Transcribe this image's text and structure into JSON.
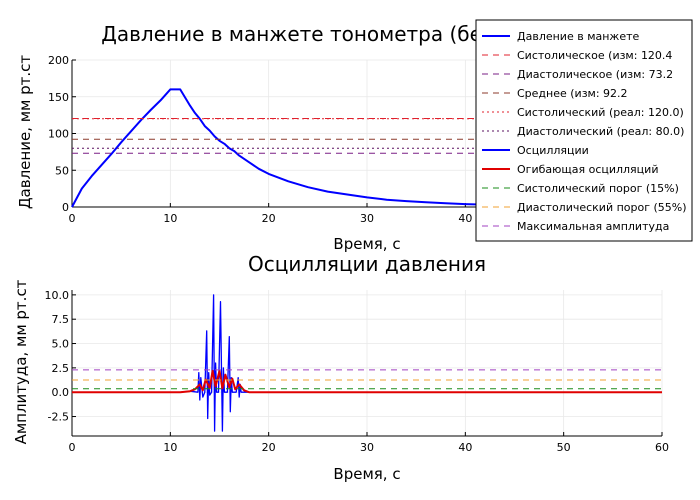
{
  "chart_data": [
    {
      "type": "line",
      "title": "Давление в манжете тонометра (без артефактов)",
      "xlabel": "Время, с",
      "ylabel": "Давление, мм рт.ст",
      "xlim": [
        0,
        60
      ],
      "ylim": [
        0,
        200
      ],
      "xticks": [
        0,
        10,
        20,
        30,
        40
      ],
      "yticks": [
        0,
        50,
        100,
        150,
        200
      ],
      "grid": true,
      "legend": "top-right",
      "series": [
        {
          "name": "Давление в манжете",
          "color": "#0000ff",
          "style": "solid",
          "x": [
            0,
            1,
            2,
            3,
            4,
            5,
            6,
            7,
            8,
            9,
            10,
            11,
            12,
            12.5,
            13,
            13.5,
            14,
            14.5,
            15,
            15.5,
            16,
            16.5,
            17,
            18,
            19,
            20,
            22,
            24,
            26,
            28,
            30,
            32,
            34,
            36,
            38,
            40,
            42,
            44,
            46,
            48,
            50,
            55,
            60
          ],
          "y": [
            0,
            25,
            42,
            57,
            72,
            88,
            103,
            118,
            132,
            145,
            160,
            160,
            138,
            128,
            120,
            110,
            104,
            96,
            90,
            86,
            80,
            76,
            70,
            61,
            52,
            45,
            35,
            27,
            21,
            17,
            13,
            10,
            8,
            6.5,
            5,
            4,
            3.2,
            2.6,
            2.1,
            1.7,
            1.4,
            0.8,
            0.5
          ]
        },
        {
          "name": "Систолическое (изм: 120.4",
          "color": "#e0202c",
          "style": "dash",
          "hline": 120.4
        },
        {
          "name": "Диастолическое (изм: 73.2",
          "color": "#7a1f85",
          "style": "dash",
          "hline": 73.2
        },
        {
          "name": "Среднее (изм: 92.2",
          "color": "#8b3a2b",
          "style": "dash",
          "hline": 92.2
        },
        {
          "name": "Систолический (реал: 120.0)",
          "color": "#e0202c",
          "style": "dot",
          "hline": 120.0
        },
        {
          "name": "Диастолический (реал: 80.0)",
          "color": "#5a1060",
          "style": "dot",
          "hline": 80.0
        }
      ]
    },
    {
      "type": "line",
      "title": "Осцилляции давления",
      "xlabel": "Время, с",
      "ylabel": "Амплитуда, мм рт.ст",
      "xlim": [
        0,
        60
      ],
      "ylim": [
        -4.5,
        10.5
      ],
      "xticks": [
        0,
        10,
        20,
        30,
        40,
        50,
        60
      ],
      "yticks": [
        -2.5,
        0.0,
        2.5,
        5.0,
        7.5,
        10.0
      ],
      "grid": true,
      "series": [
        {
          "name": "Осцилляции",
          "color": "#0000ff",
          "style": "solid",
          "x": [
            0,
            10,
            11,
            12,
            12.8,
            12.9,
            13.0,
            13.1,
            13.3,
            13.5,
            13.7,
            13.8,
            13.9,
            14.0,
            14.2,
            14.4,
            14.5,
            14.6,
            14.7,
            14.9,
            15.1,
            15.3,
            15.4,
            15.5,
            15.6,
            15.8,
            16.0,
            16.1,
            16.2,
            16.3,
            16.5,
            16.7,
            16.9,
            17.0,
            17.1,
            17.2,
            17.4,
            18,
            19,
            20,
            60
          ],
          "y": [
            0,
            0,
            0,
            0.1,
            0,
            2.0,
            -0.8,
            1.5,
            -0.5,
            0,
            6.3,
            -2.7,
            2.0,
            -0.3,
            0,
            10.0,
            -4.0,
            3.0,
            0,
            0,
            9.3,
            -4.0,
            2.5,
            0,
            0,
            0,
            5.7,
            -2.0,
            1.5,
            0,
            0,
            0,
            1.5,
            -0.5,
            0.8,
            0,
            0,
            0,
            0,
            0,
            0
          ]
        },
        {
          "name": "Огибающая осцилляций",
          "color": "#e00000",
          "style": "solid",
          "x": [
            0,
            11,
            12,
            12.5,
            13,
            13.3,
            13.6,
            14.0,
            14.3,
            14.6,
            15.0,
            15.3,
            15.6,
            16.0,
            16.3,
            16.6,
            17.0,
            17.5,
            18,
            20,
            60
          ],
          "y": [
            0,
            0,
            0.1,
            0.3,
            0.8,
            0.2,
            1.3,
            0.4,
            2.2,
            0.6,
            2.2,
            0.4,
            1.8,
            0.5,
            1.4,
            0.3,
            0.8,
            0.2,
            0,
            0,
            0
          ]
        },
        {
          "name": "Систолический порог (15%)",
          "color": "#1a8c1a",
          "style": "dash",
          "hline": 0.35
        },
        {
          "name": "Диастолический порог (55%)",
          "color": "#f0a030",
          "style": "dash",
          "hline": 1.25
        },
        {
          "name": "Максимальная амплитуда",
          "color": "#a040c0",
          "style": "dash",
          "hline": 2.3
        }
      ]
    }
  ]
}
